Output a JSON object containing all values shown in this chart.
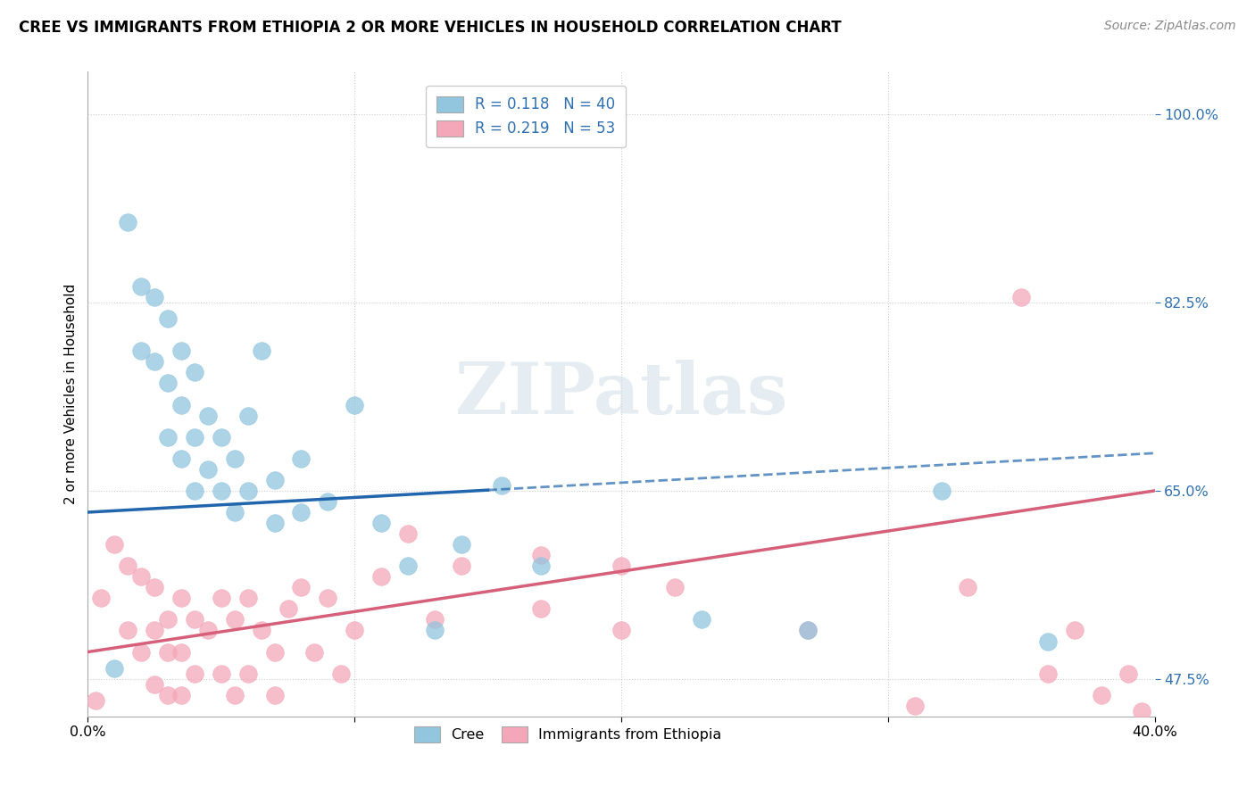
{
  "title": "CREE VS IMMIGRANTS FROM ETHIOPIA 2 OR MORE VEHICLES IN HOUSEHOLD CORRELATION CHART",
  "source": "Source: ZipAtlas.com",
  "ylabel": "2 or more Vehicles in Household",
  "xlim": [
    0.0,
    40.0
  ],
  "ylim": [
    44.0,
    104.0
  ],
  "yticks": [
    47.5,
    65.0,
    82.5,
    100.0
  ],
  "xticks": [
    0.0,
    10.0,
    20.0,
    30.0,
    40.0
  ],
  "ytick_labels": [
    "47.5%",
    "65.0%",
    "82.5%",
    "100.0%"
  ],
  "blue_color": "#92c5de",
  "pink_color": "#f4a7b9",
  "blue_line_color": "#2166ac",
  "pink_line_color": "#d6607a",
  "legend_text_color": "#3070b0",
  "R_blue": 0.118,
  "N_blue": 40,
  "R_pink": 0.219,
  "N_pink": 53,
  "blue_line_solid_end": 15.0,
  "blue_scatter_x": [
    1.0,
    1.5,
    2.0,
    2.0,
    2.5,
    2.5,
    3.0,
    3.0,
    3.0,
    3.5,
    3.5,
    3.5,
    4.0,
    4.0,
    4.0,
    4.5,
    4.5,
    5.0,
    5.0,
    5.5,
    5.5,
    6.0,
    6.0,
    6.5,
    7.0,
    7.0,
    8.0,
    8.0,
    9.0,
    10.0,
    11.0,
    12.0,
    13.0,
    14.0,
    15.5,
    17.0,
    23.0,
    27.0,
    32.0,
    36.0
  ],
  "blue_scatter_y": [
    48.5,
    90.0,
    84.0,
    78.0,
    83.0,
    77.0,
    81.0,
    75.0,
    70.0,
    78.0,
    73.0,
    68.0,
    76.0,
    70.0,
    65.0,
    72.0,
    67.0,
    70.0,
    65.0,
    68.0,
    63.0,
    72.0,
    65.0,
    78.0,
    66.0,
    62.0,
    68.0,
    63.0,
    64.0,
    73.0,
    62.0,
    58.0,
    52.0,
    60.0,
    65.5,
    58.0,
    53.0,
    52.0,
    65.0,
    51.0
  ],
  "pink_scatter_x": [
    0.5,
    1.0,
    1.5,
    1.5,
    2.0,
    2.0,
    2.5,
    2.5,
    2.5,
    3.0,
    3.0,
    3.0,
    3.5,
    3.5,
    3.5,
    4.0,
    4.0,
    4.0,
    4.5,
    5.0,
    5.0,
    5.5,
    5.5,
    6.0,
    6.0,
    6.5,
    7.0,
    7.0,
    7.5,
    8.0,
    8.5,
    9.0,
    9.5,
    10.0,
    11.0,
    12.0,
    13.0,
    14.0,
    17.0,
    17.0,
    20.0,
    20.0,
    22.0,
    27.0,
    31.0,
    33.0,
    35.0,
    36.0,
    37.0,
    38.0,
    39.0,
    39.5,
    0.3
  ],
  "pink_scatter_y": [
    55.0,
    60.0,
    58.0,
    52.0,
    57.0,
    50.0,
    56.0,
    52.0,
    47.0,
    53.0,
    50.0,
    46.0,
    55.0,
    50.0,
    46.0,
    53.0,
    48.0,
    43.0,
    52.0,
    55.0,
    48.0,
    53.0,
    46.0,
    55.0,
    48.0,
    52.0,
    50.0,
    46.0,
    54.0,
    56.0,
    50.0,
    55.0,
    48.0,
    52.0,
    57.0,
    61.0,
    53.0,
    58.0,
    59.0,
    54.0,
    58.0,
    52.0,
    56.0,
    52.0,
    45.0,
    56.0,
    83.0,
    48.0,
    52.0,
    46.0,
    48.0,
    44.5,
    45.5
  ],
  "watermark": "ZIPatlas",
  "background_color": "#ffffff",
  "grid_color": "#cccccc",
  "blue_line_y0": 63.0,
  "blue_line_y40": 68.5,
  "pink_line_y0": 50.0,
  "pink_line_y40": 65.0
}
